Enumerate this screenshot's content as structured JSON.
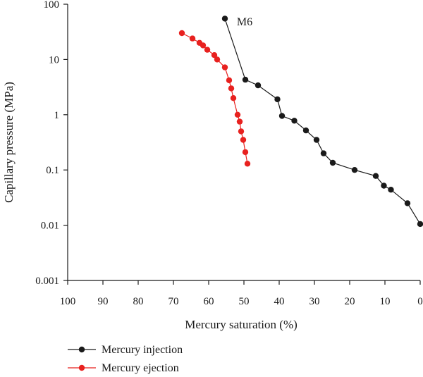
{
  "chart_data": {
    "type": "scatter",
    "title": "",
    "annotation": "M6",
    "xlabel": "Mercury saturation (%)",
    "ylabel": "Capillary pressure (MPa)",
    "xlim": [
      100,
      0
    ],
    "ylim": [
      0.001,
      100
    ],
    "yscale": "log",
    "grid": false,
    "legend_position": "bottom-left",
    "x_ticks": [
      "100",
      "90",
      "80",
      "70",
      "60",
      "50",
      "40",
      "30",
      "20",
      "10",
      "0"
    ],
    "x_tick_values": [
      100,
      90,
      80,
      70,
      60,
      50,
      40,
      30,
      20,
      10,
      0
    ],
    "y_ticks": [
      "100",
      "10",
      "1",
      "0.1",
      "0.01",
      "0.001"
    ],
    "y_tick_values": [
      100,
      10,
      1,
      0.1,
      0.01,
      0.001
    ],
    "series": [
      {
        "name": "Mercury injection",
        "color": "#1a1a1a",
        "marker": "circle",
        "x": [
          55.4,
          49.6,
          46.0,
          40.5,
          39.2,
          35.7,
          32.4,
          29.4,
          27.4,
          24.8,
          18.6,
          12.6,
          10.3,
          8.3,
          3.6,
          0.0
        ],
        "y": [
          55,
          4.3,
          3.4,
          1.9,
          0.95,
          0.78,
          0.52,
          0.35,
          0.2,
          0.135,
          0.1,
          0.078,
          0.052,
          0.044,
          0.025,
          0.0105
        ]
      },
      {
        "name": "Mercury ejection",
        "color": "#e8211f",
        "marker": "circle",
        "x": [
          67.6,
          64.6,
          62.6,
          61.6,
          60.4,
          58.4,
          57.6,
          55.4,
          54.2,
          53.6,
          53.0,
          51.8,
          51.2,
          50.8,
          50.2,
          49.6,
          49.0
        ],
        "y": [
          30,
          24,
          20,
          18,
          15,
          12,
          10,
          7.2,
          4.2,
          3.0,
          2.0,
          1.0,
          0.75,
          0.5,
          0.35,
          0.21,
          0.13
        ]
      }
    ]
  }
}
